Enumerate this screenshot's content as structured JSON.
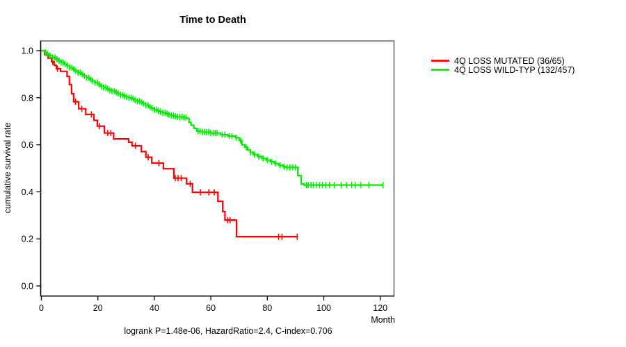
{
  "chart_data": {
    "type": "line",
    "subtype": "kaplan-meier-step-curves",
    "title": "Time to Death",
    "xlabel": "Month",
    "ylabel": "cumulative survival rate",
    "annotation": "logrank P=1.48e-06, HazardRatio=2.4, C-index=0.706",
    "xlim": [
      0,
      125
    ],
    "ylim": [
      0,
      1
    ],
    "xticks": [
      0,
      20,
      40,
      60,
      80,
      100,
      120
    ],
    "yticks": [
      "0.0",
      "0.2",
      "0.4",
      "0.6",
      "0.8",
      "1.0"
    ],
    "grid": false,
    "legend_position": "outside-right-top",
    "box_color": "#808080",
    "axis_color": "#000000",
    "series": [
      {
        "name": "4Q LOSS MUTATED (36/65)",
        "color": "#FF0000",
        "end_time": 90.6,
        "steps": [
          [
            0,
            1.0
          ],
          [
            1.2,
            0.982
          ],
          [
            2.4,
            0.968
          ],
          [
            3.6,
            0.953
          ],
          [
            4.5,
            0.938
          ],
          [
            5.3,
            0.923
          ],
          [
            6.8,
            0.912
          ],
          [
            9.1,
            0.891
          ],
          [
            9.9,
            0.856
          ],
          [
            10.7,
            0.817
          ],
          [
            11.4,
            0.783
          ],
          [
            13.2,
            0.753
          ],
          [
            15.7,
            0.729
          ],
          [
            18.6,
            0.704
          ],
          [
            19.8,
            0.679
          ],
          [
            22.3,
            0.65
          ],
          [
            25.6,
            0.625
          ],
          [
            30.9,
            0.611
          ],
          [
            32.1,
            0.596
          ],
          [
            35.4,
            0.571
          ],
          [
            37.0,
            0.547
          ],
          [
            39.1,
            0.522
          ],
          [
            43.2,
            0.498
          ],
          [
            46.9,
            0.458
          ],
          [
            51.4,
            0.434
          ],
          [
            53.5,
            0.398
          ],
          [
            62.5,
            0.36
          ],
          [
            64.2,
            0.316
          ],
          [
            65.0,
            0.28
          ],
          [
            69.1,
            0.209
          ]
        ],
        "censor_times": [
          4.0,
          5.7,
          12.1,
          14.3,
          17.7,
          20.6,
          23.5,
          24.6,
          33.3,
          37.8,
          41.6,
          47.4,
          48.4,
          49.5,
          52.7,
          56.3,
          59.3,
          61.2,
          66.0,
          66.8,
          84.0,
          85.2,
          90.6
        ]
      },
      {
        "name": "4Q LOSS WILD-TYP (132/457)",
        "color": "#00EE00",
        "end_time": 121,
        "steps": [
          [
            0,
            1.0
          ],
          [
            1,
            0.993
          ],
          [
            2,
            0.986
          ],
          [
            3,
            0.978
          ],
          [
            4,
            0.971
          ],
          [
            5,
            0.964
          ],
          [
            6,
            0.957
          ],
          [
            7,
            0.95
          ],
          [
            8,
            0.943
          ],
          [
            9,
            0.936
          ],
          [
            10,
            0.928
          ],
          [
            11,
            0.921
          ],
          [
            12,
            0.914
          ],
          [
            13,
            0.907
          ],
          [
            14,
            0.9
          ],
          [
            15,
            0.893
          ],
          [
            16,
            0.885
          ],
          [
            17,
            0.878
          ],
          [
            18,
            0.871
          ],
          [
            19,
            0.864
          ],
          [
            20,
            0.857
          ],
          [
            21,
            0.849
          ],
          [
            22,
            0.843
          ],
          [
            23,
            0.838
          ],
          [
            24,
            0.832
          ],
          [
            25,
            0.828
          ],
          [
            26,
            0.824
          ],
          [
            27,
            0.818
          ],
          [
            28,
            0.812
          ],
          [
            29,
            0.807
          ],
          [
            30,
            0.803
          ],
          [
            31,
            0.8
          ],
          [
            32,
            0.795
          ],
          [
            33,
            0.79
          ],
          [
            34,
            0.785
          ],
          [
            35,
            0.781
          ],
          [
            36,
            0.775
          ],
          [
            37,
            0.768
          ],
          [
            38,
            0.761
          ],
          [
            39,
            0.755
          ],
          [
            40,
            0.749
          ],
          [
            41,
            0.744
          ],
          [
            42,
            0.74
          ],
          [
            43,
            0.736
          ],
          [
            44,
            0.732
          ],
          [
            45,
            0.728
          ],
          [
            46,
            0.724
          ],
          [
            47,
            0.721
          ],
          [
            48,
            0.719
          ],
          [
            50,
            0.716
          ],
          [
            51.5,
            0.712
          ],
          [
            52.3,
            0.695
          ],
          [
            53,
            0.683
          ],
          [
            54,
            0.67
          ],
          [
            55,
            0.658
          ],
          [
            57,
            0.654
          ],
          [
            60,
            0.65
          ],
          [
            63.4,
            0.643
          ],
          [
            66,
            0.637
          ],
          [
            68.7,
            0.63
          ],
          [
            70,
            0.618
          ],
          [
            71,
            0.6
          ],
          [
            72,
            0.59
          ],
          [
            73,
            0.578
          ],
          [
            74,
            0.568
          ],
          [
            75,
            0.558
          ],
          [
            76.5,
            0.55
          ],
          [
            78,
            0.542
          ],
          [
            79.5,
            0.535
          ],
          [
            81,
            0.528
          ],
          [
            82.5,
            0.52
          ],
          [
            84,
            0.513
          ],
          [
            85.5,
            0.507
          ],
          [
            86.5,
            0.504
          ],
          [
            90.8,
            0.469
          ],
          [
            92,
            0.434
          ],
          [
            93,
            0.429
          ]
        ],
        "censor_times": [
          1.5,
          2.2,
          3.1,
          4.0,
          4.8,
          5.5,
          6.3,
          7.0,
          7.7,
          8.4,
          9.2,
          10.0,
          10.8,
          11.5,
          12.2,
          13.0,
          13.8,
          14.5,
          15.2,
          16.0,
          16.8,
          17.5,
          18.2,
          19.0,
          19.8,
          20.5,
          21.2,
          22.0,
          22.8,
          23.5,
          24.2,
          25.0,
          25.8,
          26.5,
          27.2,
          28.0,
          28.8,
          29.5,
          30.2,
          31.0,
          31.8,
          32.5,
          33.2,
          34.0,
          34.8,
          35.5,
          36.2,
          37.0,
          37.8,
          38.5,
          39.2,
          40.0,
          40.8,
          41.5,
          42.2,
          43.0,
          43.8,
          44.5,
          45.2,
          46.0,
          46.8,
          47.5,
          48.2,
          49.0,
          49.8,
          50.5,
          51.2,
          55.5,
          56.2,
          57.0,
          57.8,
          58.5,
          59.2,
          60.0,
          60.8,
          61.5,
          62.2,
          64.0,
          65.0,
          66.5,
          67.5,
          69.0,
          70.5,
          72.5,
          74.0,
          75.5,
          77.0,
          78.5,
          80.0,
          81.5,
          83.0,
          84.5,
          86.0,
          87.0,
          88.0,
          89.0,
          90.0,
          93.8,
          94.5,
          95.5,
          96.3,
          97.5,
          98.5,
          99.5,
          100.7,
          102.0,
          103.7,
          106.2,
          108.0,
          109.9,
          111.1,
          113.1,
          116.0,
          121.0
        ]
      }
    ]
  }
}
